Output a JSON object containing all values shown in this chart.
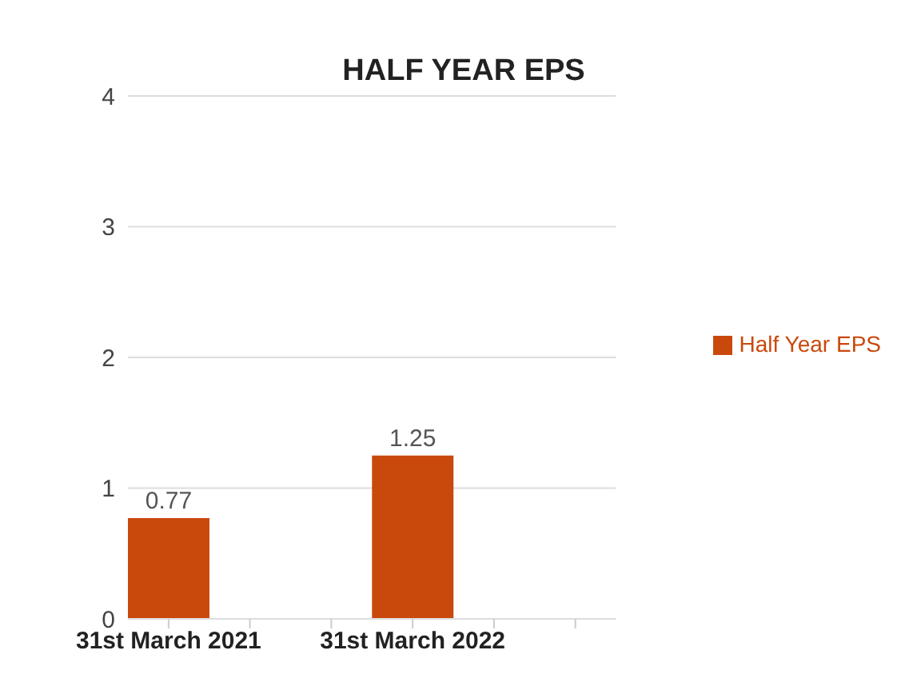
{
  "chart_data": {
    "type": "bar",
    "title": "HALF YEAR EPS",
    "categories": [
      "31st March 2021",
      null,
      null,
      "31st March 2022",
      null,
      null
    ],
    "series": [
      {
        "name": "Half Year EPS",
        "color": "#c9490c",
        "values": [
          0.77,
          null,
          null,
          1.25,
          null,
          null
        ]
      }
    ],
    "ylim": [
      0,
      4
    ],
    "yticks": [
      0,
      1,
      2,
      3,
      4
    ],
    "grid": "y",
    "legend": "right",
    "data_labels": true
  }
}
